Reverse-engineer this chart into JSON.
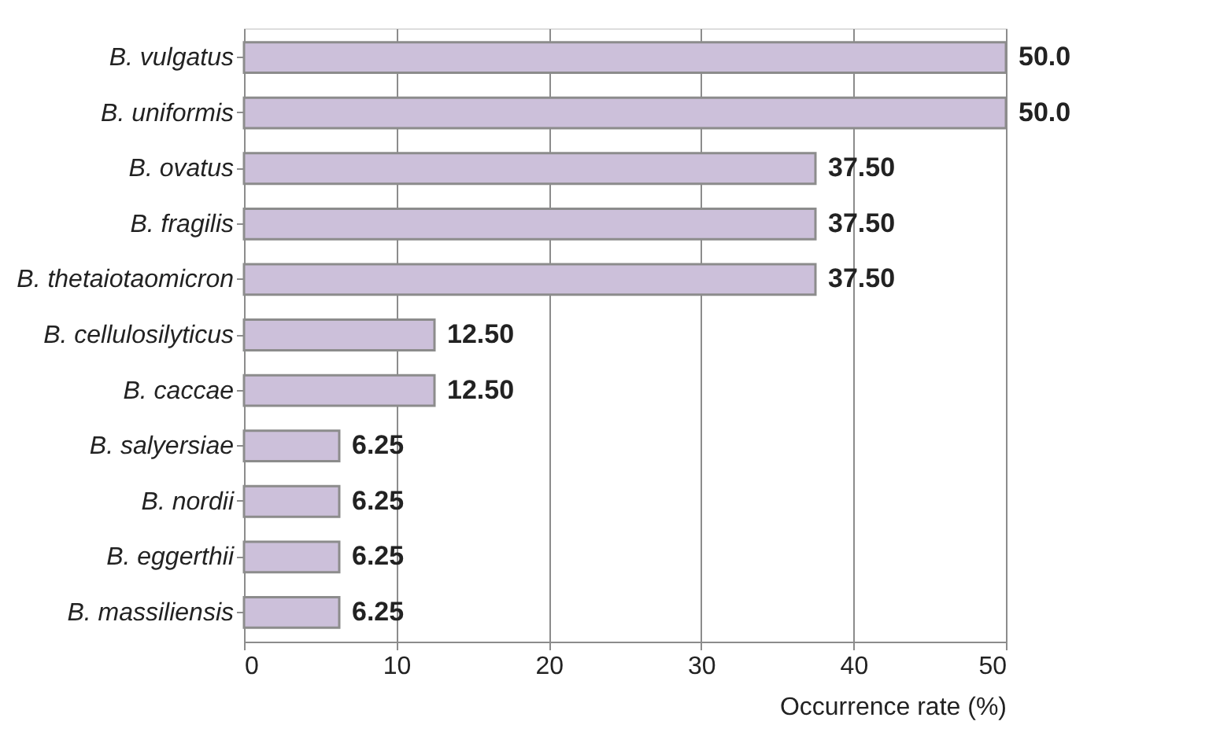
{
  "chart_data": {
    "type": "bar",
    "orientation": "horizontal",
    "xlabel": "Occurrence rate (%)",
    "categories": [
      "B. vulgatus",
      "B. uniformis",
      "B. ovatus",
      "B. fragilis",
      "B. thetaiotaomicron",
      "B. cellulosilyticus",
      "B. caccae",
      "B. salyersiae",
      "B. nordii",
      "B. eggerthii",
      "B. massiliensis"
    ],
    "values": [
      50,
      50,
      37.5,
      37.5,
      37.5,
      12.5,
      12.5,
      6.25,
      6.25,
      6.25,
      6.25
    ],
    "value_labels": [
      "50.0",
      "50.0",
      "37.50",
      "37.50",
      "37.50",
      "12.50",
      "12.50",
      "6.25",
      "6.25",
      "6.25",
      "6.25"
    ],
    "color": "#ccc0da",
    "xlim": [
      0,
      50
    ],
    "xticks": [
      0,
      10,
      20,
      30,
      40,
      50
    ],
    "grid": "x"
  }
}
